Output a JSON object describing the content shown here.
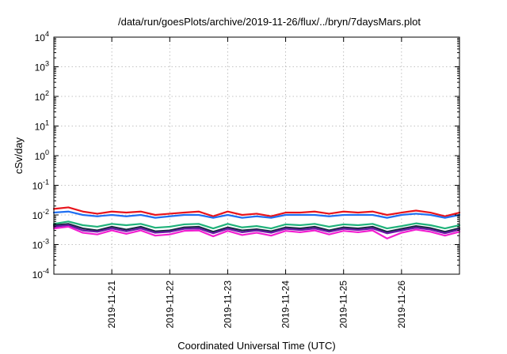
{
  "chart_data": {
    "type": "line",
    "title": "/data/run/goesPlots/archive/2019-11-26/flux/../bryn/7daysMars.plot",
    "xlabel": "Coordinated Universal Time (UTC)",
    "ylabel": "cSv/day",
    "yscale": "log",
    "ylim": [
      0.0001,
      10000
    ],
    "y_ticks": [
      {
        "base": "10",
        "exp": "-4",
        "value": 0.0001
      },
      {
        "base": "10",
        "exp": "-3",
        "value": 0.001
      },
      {
        "base": "10",
        "exp": "-2",
        "value": 0.01
      },
      {
        "base": "10",
        "exp": "-1",
        "value": 0.1
      },
      {
        "base": "10",
        "exp": "0",
        "value": 1
      },
      {
        "base": "10",
        "exp": "1",
        "value": 10
      },
      {
        "base": "10",
        "exp": "2",
        "value": 100
      },
      {
        "base": "10",
        "exp": "3",
        "value": 1000
      },
      {
        "base": "10",
        "exp": "4",
        "value": 10000
      }
    ],
    "xlim": [
      "2019-11-20T00:00",
      "2019-11-27T00:00"
    ],
    "x_ticks": [
      {
        "label": "2019-11-21",
        "t": "2019-11-21T00:00"
      },
      {
        "label": "2019-11-22",
        "t": "2019-11-22T00:00"
      },
      {
        "label": "2019-11-23",
        "t": "2019-11-23T00:00"
      },
      {
        "label": "2019-11-24",
        "t": "2019-11-24T00:00"
      },
      {
        "label": "2019-11-25",
        "t": "2019-11-25T00:00"
      },
      {
        "label": "2019-11-26",
        "t": "2019-11-26T00:00"
      }
    ],
    "grid": true,
    "x": [
      "2019-11-20T00:00",
      "2019-11-20T06:00",
      "2019-11-20T12:00",
      "2019-11-20T18:00",
      "2019-11-21T00:00",
      "2019-11-21T06:00",
      "2019-11-21T12:00",
      "2019-11-21T18:00",
      "2019-11-22T00:00",
      "2019-11-22T06:00",
      "2019-11-22T12:00",
      "2019-11-22T18:00",
      "2019-11-23T00:00",
      "2019-11-23T06:00",
      "2019-11-23T12:00",
      "2019-11-23T18:00",
      "2019-11-24T00:00",
      "2019-11-24T06:00",
      "2019-11-24T12:00",
      "2019-11-24T18:00",
      "2019-11-25T00:00",
      "2019-11-25T06:00",
      "2019-11-25T12:00",
      "2019-11-25T18:00",
      "2019-11-26T00:00",
      "2019-11-26T06:00",
      "2019-11-26T12:00",
      "2019-11-26T18:00",
      "2019-11-27T00:00"
    ],
    "series": [
      {
        "color": "#e8141c",
        "values": [
          0.016,
          0.018,
          0.013,
          0.011,
          0.013,
          0.012,
          0.013,
          0.01,
          0.011,
          0.012,
          0.013,
          0.009,
          0.013,
          0.01,
          0.011,
          0.009,
          0.012,
          0.012,
          0.013,
          0.011,
          0.013,
          0.012,
          0.013,
          0.01,
          0.012,
          0.014,
          0.012,
          0.009,
          0.012
        ]
      },
      {
        "color": "#1f6ff2",
        "values": [
          0.012,
          0.013,
          0.01,
          0.009,
          0.01,
          0.009,
          0.01,
          0.008,
          0.009,
          0.01,
          0.01,
          0.008,
          0.01,
          0.008,
          0.009,
          0.008,
          0.01,
          0.01,
          0.01,
          0.009,
          0.01,
          0.01,
          0.01,
          0.008,
          0.01,
          0.011,
          0.01,
          0.008,
          0.01
        ]
      },
      {
        "color": "#20b27a",
        "values": [
          0.005,
          0.006,
          0.0045,
          0.004,
          0.005,
          0.0045,
          0.005,
          0.0037,
          0.004,
          0.0048,
          0.005,
          0.0035,
          0.005,
          0.0038,
          0.0042,
          0.0035,
          0.0048,
          0.0045,
          0.005,
          0.004,
          0.0048,
          0.0045,
          0.005,
          0.0035,
          0.0042,
          0.0052,
          0.0045,
          0.0035,
          0.0045
        ]
      },
      {
        "color": "#1a2a44",
        "values": [
          0.0045,
          0.005,
          0.0035,
          0.003,
          0.004,
          0.0032,
          0.004,
          0.0028,
          0.003,
          0.0038,
          0.004,
          0.0027,
          0.0038,
          0.003,
          0.0033,
          0.0028,
          0.0038,
          0.0035,
          0.004,
          0.003,
          0.0038,
          0.0035,
          0.004,
          0.0027,
          0.0034,
          0.0042,
          0.0036,
          0.0027,
          0.0036
        ]
      },
      {
        "color": "#6a1aa6",
        "values": [
          0.004,
          0.0045,
          0.003,
          0.0027,
          0.0035,
          0.0028,
          0.0035,
          0.0025,
          0.0027,
          0.0034,
          0.0035,
          0.0024,
          0.0034,
          0.0026,
          0.003,
          0.0025,
          0.0034,
          0.0031,
          0.0035,
          0.0027,
          0.0034,
          0.0031,
          0.0035,
          0.0024,
          0.003,
          0.0037,
          0.0032,
          0.0024,
          0.0032
        ]
      },
      {
        "color": "#f21fd1",
        "values": [
          0.0035,
          0.004,
          0.0025,
          0.0022,
          0.003,
          0.0023,
          0.003,
          0.002,
          0.0022,
          0.0029,
          0.003,
          0.0019,
          0.0029,
          0.0021,
          0.0025,
          0.002,
          0.0029,
          0.0026,
          0.003,
          0.0022,
          0.0029,
          0.0026,
          0.003,
          0.0016,
          0.0025,
          0.0032,
          0.0027,
          0.002,
          0.0027
        ]
      }
    ]
  }
}
